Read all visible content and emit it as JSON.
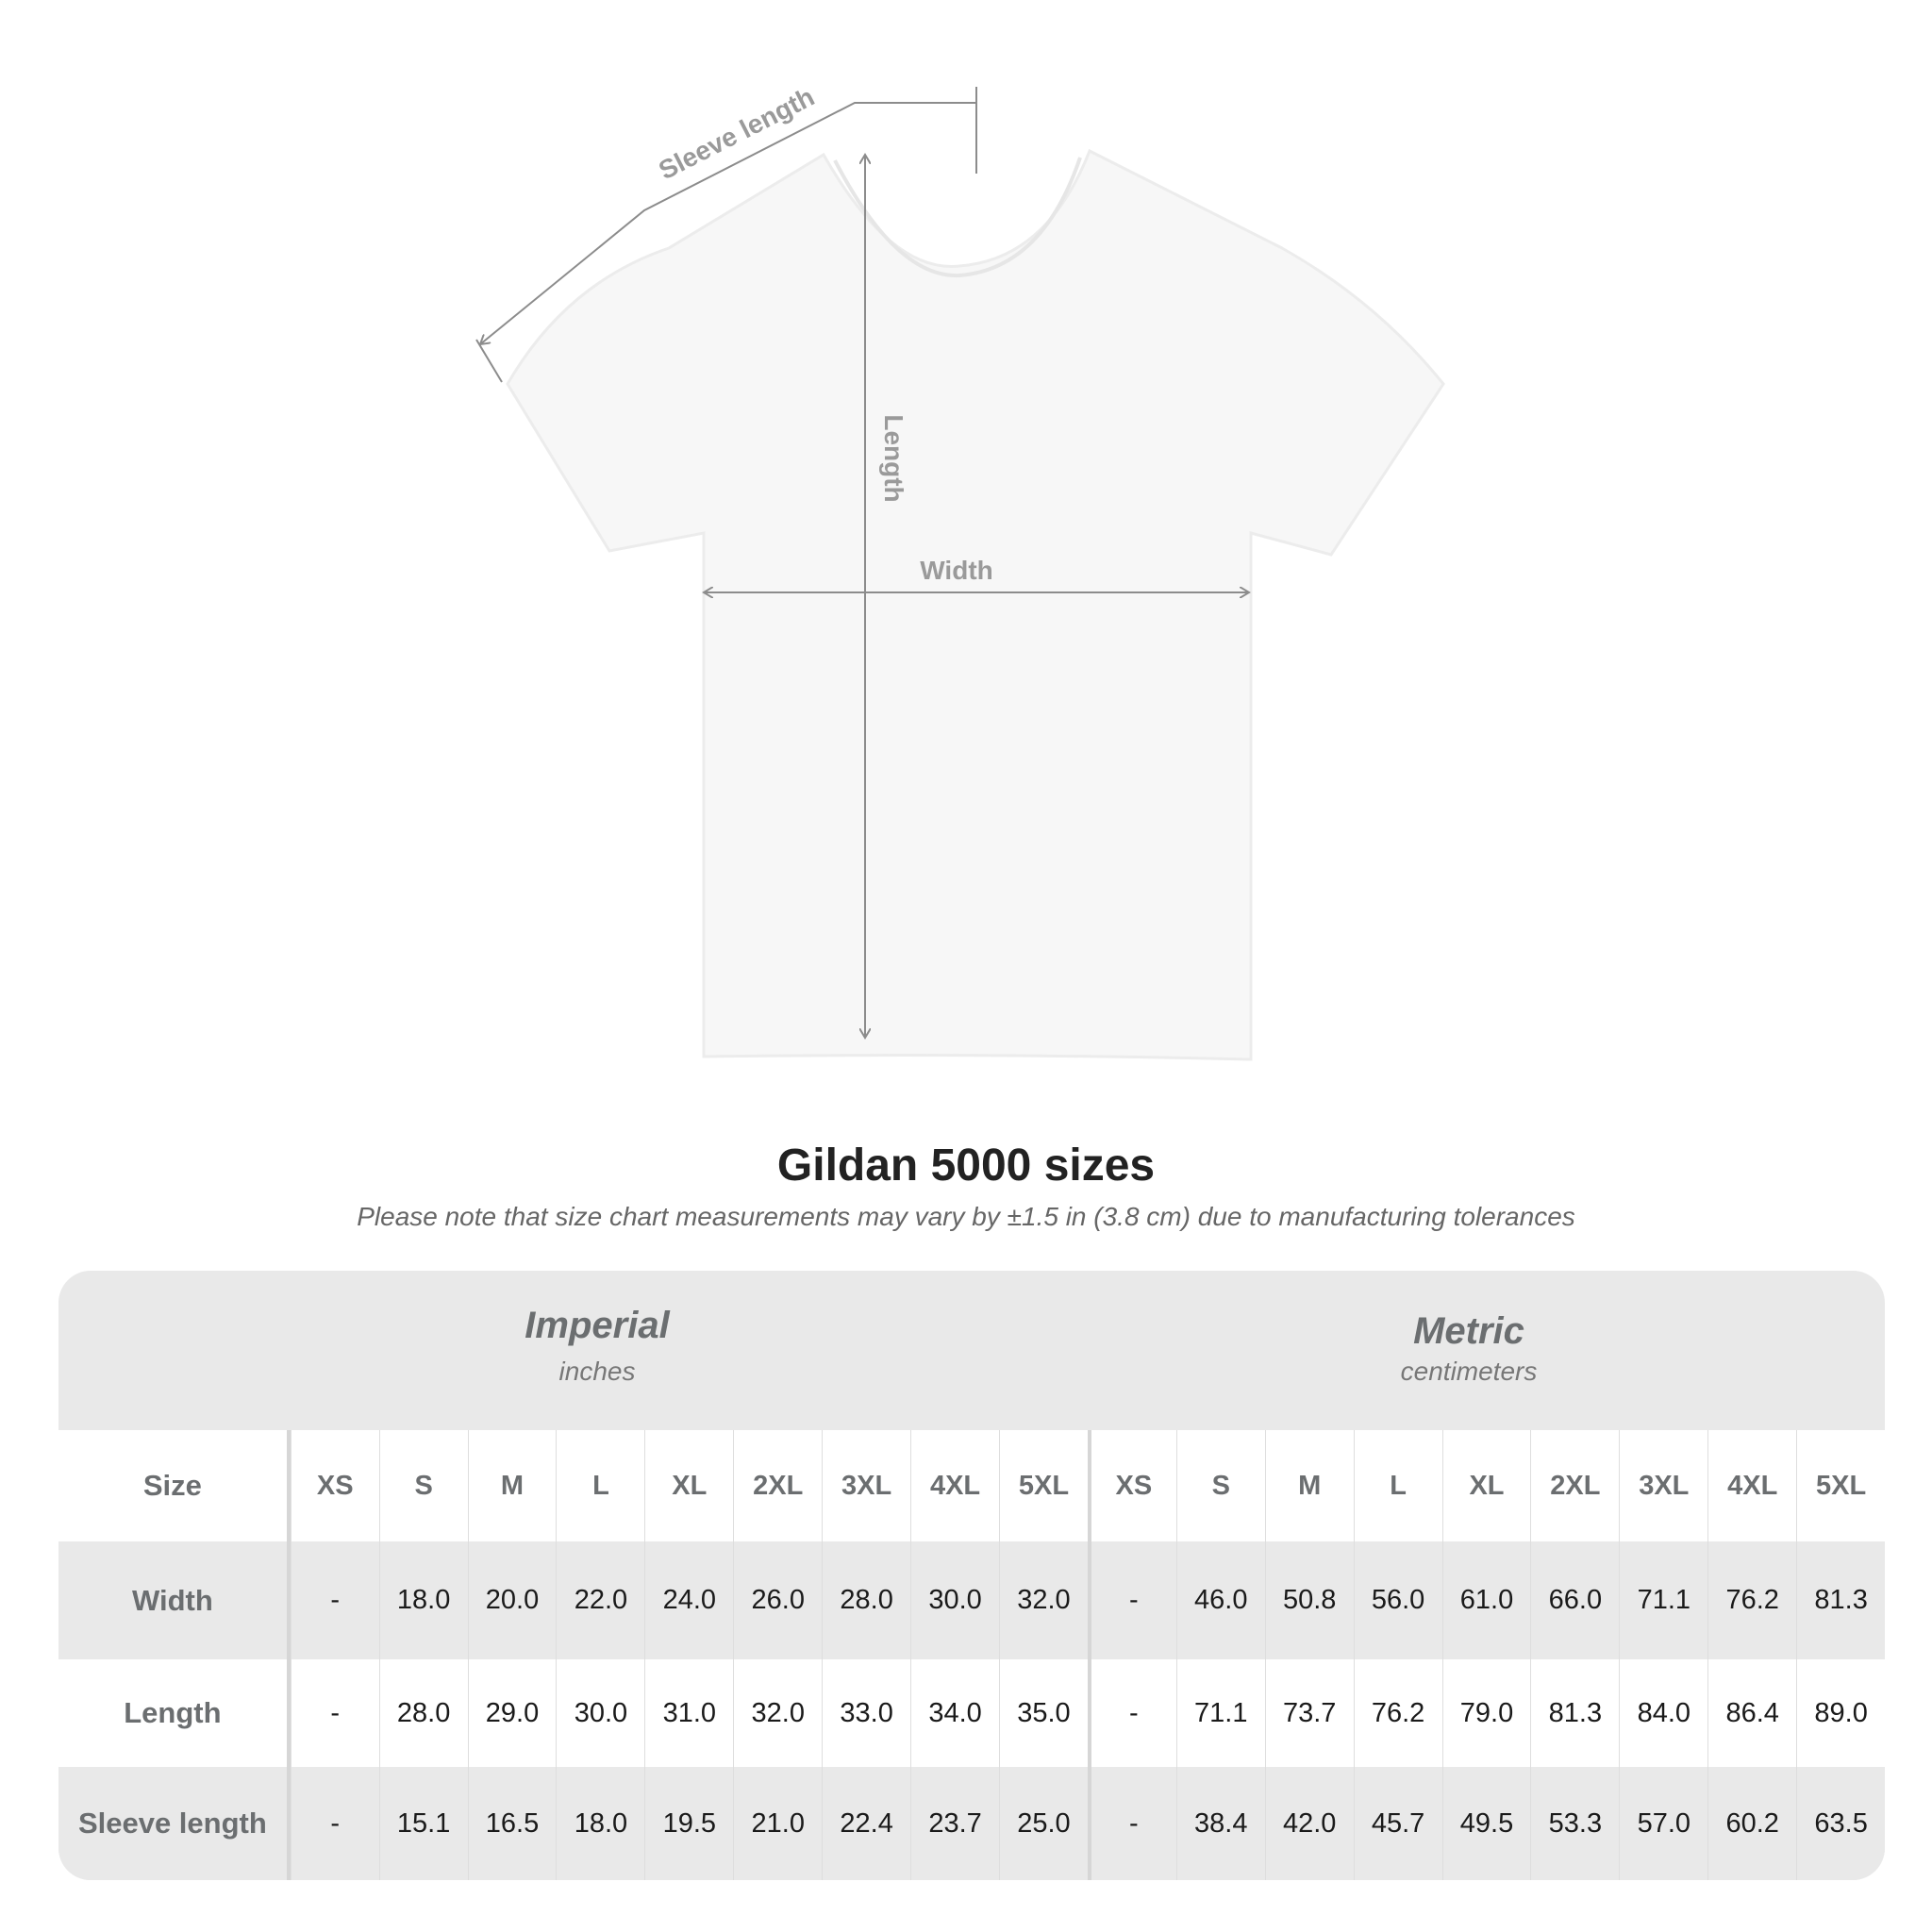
{
  "diagram": {
    "labels": {
      "sleeve_length": "Sleeve length",
      "length": "Length",
      "width": "Width"
    }
  },
  "title": "Gildan 5000 sizes",
  "subtitle": "Please note that size chart measurements may vary by ±1.5 in (3.8 cm) due to manufacturing tolerances",
  "table": {
    "imperial": {
      "name": "Imperial",
      "unit": "inches"
    },
    "metric": {
      "name": "Metric",
      "unit": "centimeters"
    },
    "size_label": "Size",
    "sizes": [
      "XS",
      "S",
      "M",
      "L",
      "XL",
      "2XL",
      "3XL",
      "4XL",
      "5XL"
    ],
    "rows": [
      {
        "label": "Width",
        "imperial": [
          "-",
          "18.0",
          "20.0",
          "22.0",
          "24.0",
          "26.0",
          "28.0",
          "30.0",
          "32.0"
        ],
        "metric": [
          "-",
          "46.0",
          "50.8",
          "56.0",
          "61.0",
          "66.0",
          "71.1",
          "76.2",
          "81.3"
        ]
      },
      {
        "label": "Length",
        "imperial": [
          "-",
          "28.0",
          "29.0",
          "30.0",
          "31.0",
          "32.0",
          "33.0",
          "34.0",
          "35.0"
        ],
        "metric": [
          "-",
          "71.1",
          "73.7",
          "76.2",
          "79.0",
          "81.3",
          "84.0",
          "86.4",
          "89.0"
        ]
      },
      {
        "label": "Sleeve length",
        "imperial": [
          "-",
          "15.1",
          "16.5",
          "18.0",
          "19.5",
          "21.0",
          "22.4",
          "23.7",
          "25.0"
        ],
        "metric": [
          "-",
          "38.4",
          "42.0",
          "45.7",
          "49.5",
          "53.3",
          "57.0",
          "60.2",
          "63.5"
        ]
      }
    ]
  },
  "colors": {
    "band": "#e9e9e9",
    "label_text": "#6b6e70",
    "arrow": "#8c8c8c"
  }
}
